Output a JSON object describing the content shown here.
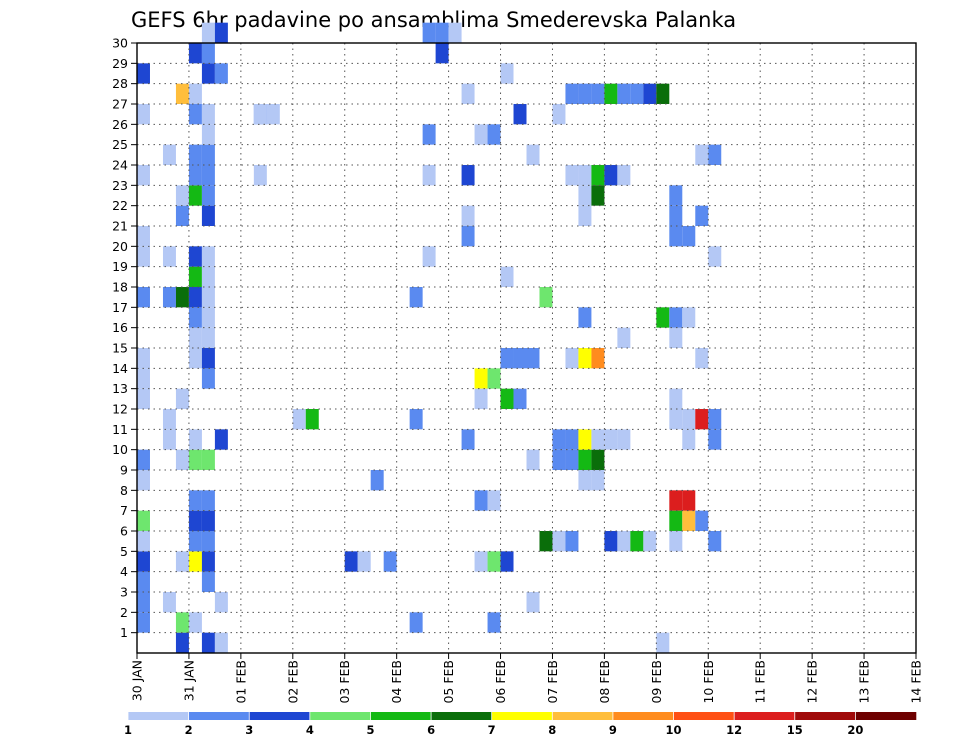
{
  "chart_data": {
    "type": "heatmap",
    "title": "GEFS 6hr padavine po ansamblima Smederevska Palanka",
    "xlabel": "",
    "ylabel": "",
    "x_tick_labels": [
      "30 JAN",
      "31 JAN",
      "01 FEB",
      "02 FEB",
      "03 FEB",
      "04 FEB",
      "05 FEB",
      "06 FEB",
      "07 FEB",
      "08 FEB",
      "09 FEB",
      "10 FEB",
      "11 FEB",
      "12 FEB",
      "13 FEB",
      "14 FEB"
    ],
    "x_range_days": [
      0,
      15
    ],
    "x_step": "6hr",
    "y_tick_labels": [
      "1",
      "2",
      "3",
      "4",
      "5",
      "6",
      "7",
      "8",
      "9",
      "10",
      "11",
      "12",
      "13",
      "14",
      "15",
      "16",
      "17",
      "18",
      "19",
      "20",
      "21",
      "22",
      "23",
      "24",
      "25",
      "26",
      "27",
      "28",
      "29",
      "30"
    ],
    "y_range": [
      0,
      30
    ],
    "grid": true,
    "colorbar": {
      "labels": [
        "1",
        "2",
        "3",
        "4",
        "5",
        "6",
        "7",
        "8",
        "9",
        "10",
        "12",
        "15",
        "20"
      ],
      "colors": [
        "#b4c8f5",
        "#5a8af0",
        "#1e46d2",
        "#6ee66e",
        "#14b914",
        "#0a6e0a",
        "#ffff00",
        "#ffbe3c",
        "#ff8c1e",
        "#ff5014",
        "#dc1e1e",
        "#a00a0a",
        "#6e0000"
      ]
    },
    "cells": [
      {
        "t": 0,
        "m": 1,
        "c": 1
      },
      {
        "t": 0,
        "m": 2,
        "c": 1
      },
      {
        "t": 0,
        "m": 3,
        "c": 1
      },
      {
        "t": 0,
        "m": 4,
        "c": 2
      },
      {
        "t": 0,
        "m": 5,
        "c": 0
      },
      {
        "t": 0,
        "m": 6,
        "c": 3
      },
      {
        "t": 0,
        "m": 8,
        "c": 0
      },
      {
        "t": 0,
        "m": 9,
        "c": 1
      },
      {
        "t": 0,
        "m": 12,
        "c": 0
      },
      {
        "t": 0,
        "m": 13,
        "c": 0
      },
      {
        "t": 0,
        "m": 14,
        "c": 0
      },
      {
        "t": 0,
        "m": 17,
        "c": 1
      },
      {
        "t": 0,
        "m": 19,
        "c": 0
      },
      {
        "t": 0,
        "m": 20,
        "c": 0
      },
      {
        "t": 0,
        "m": 23,
        "c": 0
      },
      {
        "t": 0,
        "m": 26,
        "c": 0
      },
      {
        "t": 0,
        "m": 28,
        "c": 2
      },
      {
        "t": 2,
        "m": 10,
        "c": 0
      },
      {
        "t": 2,
        "m": 11,
        "c": 0
      },
      {
        "t": 2,
        "m": 2,
        "c": 0
      },
      {
        "t": 2,
        "m": 17,
        "c": 1
      },
      {
        "t": 2,
        "m": 19,
        "c": 0
      },
      {
        "t": 2,
        "m": 24,
        "c": 0
      },
      {
        "t": 3,
        "m": 0,
        "c": 2
      },
      {
        "t": 3,
        "m": 1,
        "c": 3
      },
      {
        "t": 3,
        "m": 4,
        "c": 0
      },
      {
        "t": 3,
        "m": 9,
        "c": 0
      },
      {
        "t": 3,
        "m": 12,
        "c": 0
      },
      {
        "t": 3,
        "m": 17,
        "c": 5
      },
      {
        "t": 3,
        "m": 21,
        "c": 1
      },
      {
        "t": 3,
        "m": 22,
        "c": 0
      },
      {
        "t": 3,
        "m": 27,
        "c": 7
      },
      {
        "t": 4,
        "m": 1,
        "c": 0
      },
      {
        "t": 4,
        "m": 4,
        "c": 6
      },
      {
        "t": 4,
        "m": 5,
        "c": 1
      },
      {
        "t": 4,
        "m": 6,
        "c": 2
      },
      {
        "t": 4,
        "m": 7,
        "c": 1
      },
      {
        "t": 4,
        "m": 9,
        "c": 3
      },
      {
        "t": 4,
        "m": 10,
        "c": 0
      },
      {
        "t": 4,
        "m": 14,
        "c": 0
      },
      {
        "t": 4,
        "m": 15,
        "c": 0
      },
      {
        "t": 4,
        "m": 16,
        "c": 1
      },
      {
        "t": 4,
        "m": 17,
        "c": 2
      },
      {
        "t": 4,
        "m": 18,
        "c": 4
      },
      {
        "t": 4,
        "m": 19,
        "c": 2
      },
      {
        "t": 4,
        "m": 22,
        "c": 4
      },
      {
        "t": 4,
        "m": 23,
        "c": 1
      },
      {
        "t": 4,
        "m": 24,
        "c": 1
      },
      {
        "t": 4,
        "m": 26,
        "c": 1
      },
      {
        "t": 4,
        "m": 27,
        "c": 0
      },
      {
        "t": 4,
        "m": 29,
        "c": 2
      },
      {
        "t": 5,
        "m": 0,
        "c": 2
      },
      {
        "t": 5,
        "m": 3,
        "c": 1
      },
      {
        "t": 5,
        "m": 4,
        "c": 2
      },
      {
        "t": 5,
        "m": 5,
        "c": 1
      },
      {
        "t": 5,
        "m": 6,
        "c": 2
      },
      {
        "t": 5,
        "m": 7,
        "c": 1
      },
      {
        "t": 5,
        "m": 9,
        "c": 3
      },
      {
        "t": 5,
        "m": 13,
        "c": 1
      },
      {
        "t": 5,
        "m": 14,
        "c": 2
      },
      {
        "t": 5,
        "m": 15,
        "c": 0
      },
      {
        "t": 5,
        "m": 16,
        "c": 0
      },
      {
        "t": 5,
        "m": 17,
        "c": 0
      },
      {
        "t": 5,
        "m": 18,
        "c": 0
      },
      {
        "t": 5,
        "m": 19,
        "c": 0
      },
      {
        "t": 5,
        "m": 21,
        "c": 2
      },
      {
        "t": 5,
        "m": 22,
        "c": 1
      },
      {
        "t": 5,
        "m": 23,
        "c": 1
      },
      {
        "t": 5,
        "m": 24,
        "c": 1
      },
      {
        "t": 5,
        "m": 25,
        "c": 0
      },
      {
        "t": 5,
        "m": 26,
        "c": 0
      },
      {
        "t": 5,
        "m": 28,
        "c": 2
      },
      {
        "t": 5,
        "m": 29,
        "c": 1
      },
      {
        "t": 5,
        "m": 30,
        "c": 0
      },
      {
        "t": 6,
        "m": 0,
        "c": 0
      },
      {
        "t": 6,
        "m": 2,
        "c": 0
      },
      {
        "t": 6,
        "m": 10,
        "c": 2
      },
      {
        "t": 6,
        "m": 28,
        "c": 1
      },
      {
        "t": 6,
        "m": 30,
        "c": 2
      },
      {
        "t": 9,
        "m": 23,
        "c": 0
      },
      {
        "t": 9,
        "m": 26,
        "c": 1
      },
      {
        "t": 9,
        "m": 26,
        "c": 0
      },
      {
        "t": 10,
        "m": 26,
        "c": 0
      },
      {
        "t": 12,
        "m": 11,
        "c": 0
      },
      {
        "t": 13,
        "m": 11,
        "c": 4
      },
      {
        "t": 16,
        "m": 4,
        "c": 2
      },
      {
        "t": 17,
        "m": 4,
        "c": 0
      },
      {
        "t": 18,
        "m": 8,
        "c": 1
      },
      {
        "t": 19,
        "m": 4,
        "c": 1
      },
      {
        "t": 21,
        "m": 1,
        "c": 1
      },
      {
        "t": 21,
        "m": 11,
        "c": 1
      },
      {
        "t": 21,
        "m": 17,
        "c": 1
      },
      {
        "t": 22,
        "m": 19,
        "c": 0
      },
      {
        "t": 22,
        "m": 23,
        "c": 0
      },
      {
        "t": 22,
        "m": 25,
        "c": 1
      },
      {
        "t": 22,
        "m": 30,
        "c": 1
      },
      {
        "t": 23,
        "m": 29,
        "c": 2
      },
      {
        "t": 23,
        "m": 30,
        "c": 1
      },
      {
        "t": 24,
        "m": 30,
        "c": 0
      },
      {
        "t": 25,
        "m": 10,
        "c": 1
      },
      {
        "t": 25,
        "m": 20,
        "c": 1
      },
      {
        "t": 25,
        "m": 21,
        "c": 0
      },
      {
        "t": 25,
        "m": 23,
        "c": 2
      },
      {
        "t": 25,
        "m": 27,
        "c": 0
      },
      {
        "t": 26,
        "m": 7,
        "c": 1
      },
      {
        "t": 26,
        "m": 13,
        "c": 6
      },
      {
        "t": 26,
        "m": 4,
        "c": 0
      },
      {
        "t": 26,
        "m": 12,
        "c": 0
      },
      {
        "t": 26,
        "m": 25,
        "c": 0
      },
      {
        "t": 27,
        "m": 1,
        "c": 1
      },
      {
        "t": 27,
        "m": 4,
        "c": 3
      },
      {
        "t": 27,
        "m": 7,
        "c": 0
      },
      {
        "t": 27,
        "m": 13,
        "c": 3
      },
      {
        "t": 27,
        "m": 25,
        "c": 1
      },
      {
        "t": 28,
        "m": 4,
        "c": 2
      },
      {
        "t": 28,
        "m": 12,
        "c": 4
      },
      {
        "t": 28,
        "m": 14,
        "c": 1
      },
      {
        "t": 28,
        "m": 18,
        "c": 0
      },
      {
        "t": 28,
        "m": 28,
        "c": 0
      },
      {
        "t": 29,
        "m": 12,
        "c": 1
      },
      {
        "t": 29,
        "m": 14,
        "c": 1
      },
      {
        "t": 29,
        "m": 26,
        "c": 2
      },
      {
        "t": 30,
        "m": 2,
        "c": 0
      },
      {
        "t": 30,
        "m": 9,
        "c": 0
      },
      {
        "t": 30,
        "m": 14,
        "c": 1
      },
      {
        "t": 30,
        "m": 24,
        "c": 0
      },
      {
        "t": 31,
        "m": 5,
        "c": 5
      },
      {
        "t": 31,
        "m": 17,
        "c": 3
      },
      {
        "t": 32,
        "m": 5,
        "c": 0
      },
      {
        "t": 32,
        "m": 9,
        "c": 1
      },
      {
        "t": 32,
        "m": 10,
        "c": 1
      },
      {
        "t": 32,
        "m": 26,
        "c": 0
      },
      {
        "t": 33,
        "m": 5,
        "c": 1
      },
      {
        "t": 33,
        "m": 9,
        "c": 1
      },
      {
        "t": 33,
        "m": 10,
        "c": 1
      },
      {
        "t": 33,
        "m": 14,
        "c": 0
      },
      {
        "t": 33,
        "m": 23,
        "c": 0
      },
      {
        "t": 33,
        "m": 27,
        "c": 1
      },
      {
        "t": 34,
        "m": 8,
        "c": 0
      },
      {
        "t": 34,
        "m": 9,
        "c": 4
      },
      {
        "t": 34,
        "m": 10,
        "c": 6
      },
      {
        "t": 34,
        "m": 14,
        "c": 6
      },
      {
        "t": 34,
        "m": 16,
        "c": 1
      },
      {
        "t": 34,
        "m": 21,
        "c": 0
      },
      {
        "t": 34,
        "m": 22,
        "c": 0
      },
      {
        "t": 34,
        "m": 23,
        "c": 0
      },
      {
        "t": 34,
        "m": 27,
        "c": 1
      },
      {
        "t": 35,
        "m": 8,
        "c": 0
      },
      {
        "t": 35,
        "m": 9,
        "c": 5
      },
      {
        "t": 35,
        "m": 10,
        "c": 0
      },
      {
        "t": 35,
        "m": 14,
        "c": 8
      },
      {
        "t": 35,
        "m": 23,
        "c": 4
      },
      {
        "t": 35,
        "m": 22,
        "c": 5
      },
      {
        "t": 35,
        "m": 27,
        "c": 1
      },
      {
        "t": 36,
        "m": 10,
        "c": 0
      },
      {
        "t": 36,
        "m": 5,
        "c": 2
      },
      {
        "t": 36,
        "m": 23,
        "c": 2
      },
      {
        "t": 36,
        "m": 27,
        "c": 4
      },
      {
        "t": 37,
        "m": 5,
        "c": 0
      },
      {
        "t": 37,
        "m": 10,
        "c": 0
      },
      {
        "t": 37,
        "m": 15,
        "c": 0
      },
      {
        "t": 37,
        "m": 23,
        "c": 0
      },
      {
        "t": 37,
        "m": 27,
        "c": 1
      },
      {
        "t": 38,
        "m": 5,
        "c": 4
      },
      {
        "t": 38,
        "m": 27,
        "c": 1
      },
      {
        "t": 39,
        "m": 5,
        "c": 0
      },
      {
        "t": 39,
        "m": 27,
        "c": 2
      },
      {
        "t": 40,
        "m": 0,
        "c": 0
      },
      {
        "t": 40,
        "m": 16,
        "c": 4
      },
      {
        "t": 40,
        "m": 27,
        "c": 5
      },
      {
        "t": 41,
        "m": 7,
        "c": 10
      },
      {
        "t": 41,
        "m": 6,
        "c": 4
      },
      {
        "t": 41,
        "m": 11,
        "c": 0
      },
      {
        "t": 41,
        "m": 12,
        "c": 0
      },
      {
        "t": 41,
        "m": 15,
        "c": 0
      },
      {
        "t": 41,
        "m": 16,
        "c": 1
      },
      {
        "t": 41,
        "m": 20,
        "c": 1
      },
      {
        "t": 41,
        "m": 21,
        "c": 1
      },
      {
        "t": 41,
        "m": 22,
        "c": 1
      },
      {
        "t": 41,
        "m": 5,
        "c": 0
      },
      {
        "t": 42,
        "m": 6,
        "c": 7
      },
      {
        "t": 42,
        "m": 7,
        "c": 10
      },
      {
        "t": 42,
        "m": 10,
        "c": 0
      },
      {
        "t": 42,
        "m": 11,
        "c": 0
      },
      {
        "t": 42,
        "m": 16,
        "c": 0
      },
      {
        "t": 42,
        "m": 20,
        "c": 1
      },
      {
        "t": 43,
        "m": 6,
        "c": 1
      },
      {
        "t": 43,
        "m": 14,
        "c": 0
      },
      {
        "t": 43,
        "m": 21,
        "c": 1
      },
      {
        "t": 43,
        "m": 24,
        "c": 0
      },
      {
        "t": 43,
        "m": 11,
        "c": 10
      },
      {
        "t": 44,
        "m": 5,
        "c": 1
      },
      {
        "t": 44,
        "m": 10,
        "c": 1
      },
      {
        "t": 44,
        "m": 11,
        "c": 1
      },
      {
        "t": 44,
        "m": 19,
        "c": 0
      },
      {
        "t": 44,
        "m": 24,
        "c": 1
      }
    ]
  }
}
